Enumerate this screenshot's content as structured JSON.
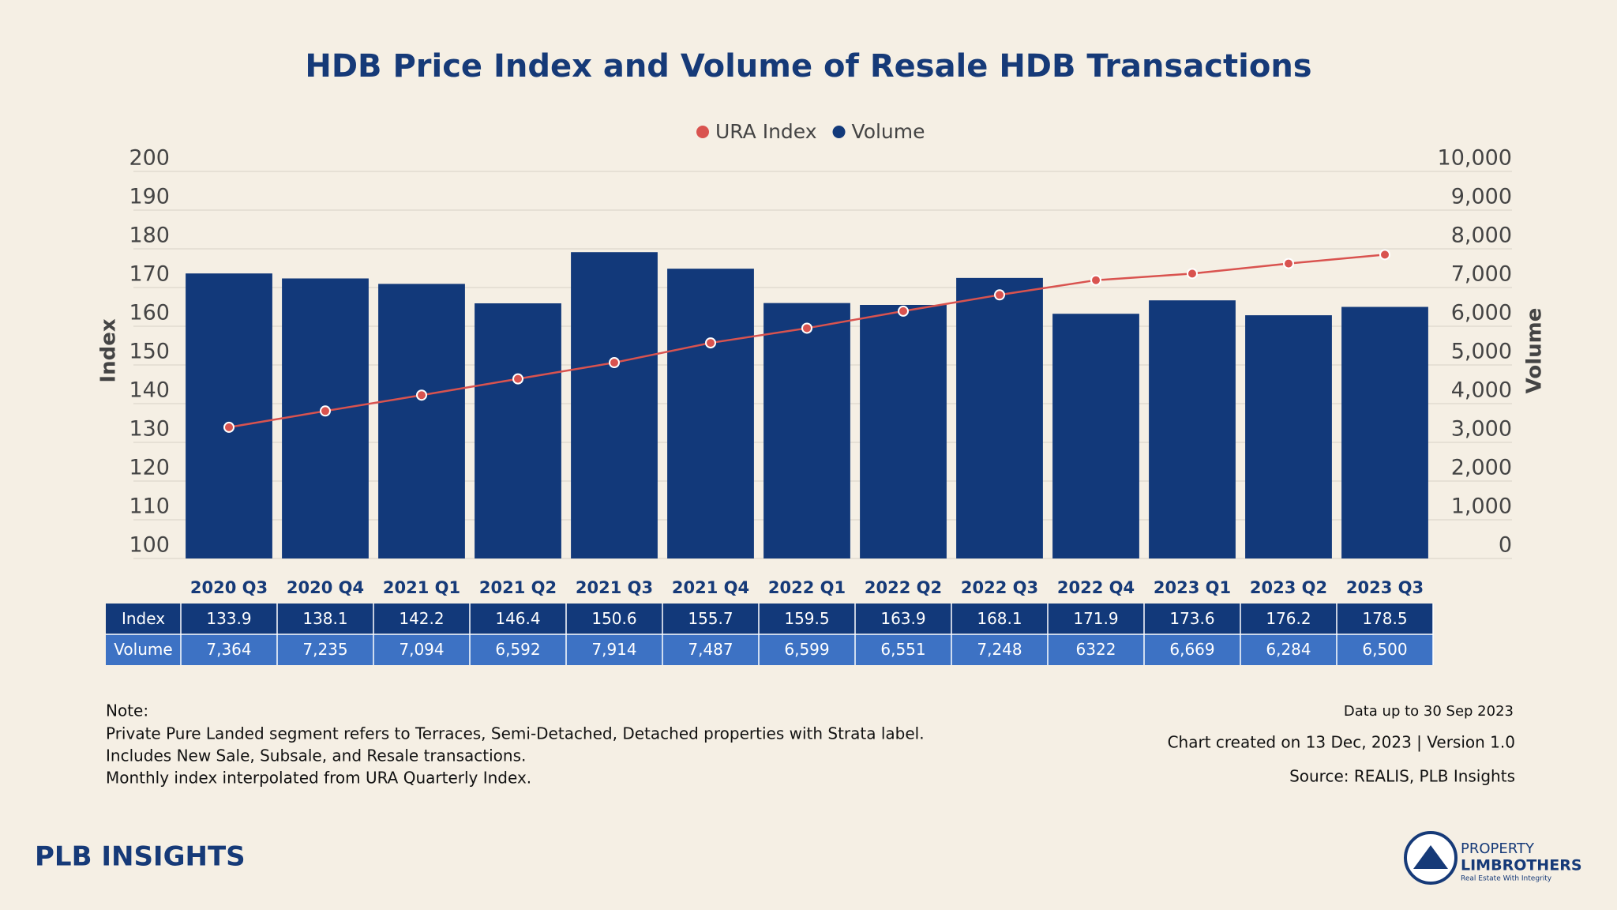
{
  "chart_data": {
    "type": "bar",
    "title": "HDB Price Index and Volume of Resale HDB Transactions",
    "categories": [
      "2020 Q3",
      "2020 Q4",
      "2021 Q1",
      "2021 Q2",
      "2021 Q3",
      "2021 Q4",
      "2022 Q1",
      "2022 Q2",
      "2022 Q3",
      "2022 Q4",
      "2023 Q1",
      "2023 Q2",
      "2023 Q3"
    ],
    "series": [
      {
        "name": "URA Index",
        "type": "line",
        "axis": "y",
        "color": "#d9534f",
        "values": [
          133.9,
          138.1,
          142.2,
          146.4,
          150.6,
          155.7,
          159.5,
          163.9,
          168.1,
          171.9,
          173.6,
          176.2,
          178.5
        ]
      },
      {
        "name": "Volume",
        "type": "bar",
        "axis": "y2",
        "color": "#12397a",
        "values": [
          7364,
          7235,
          7094,
          6592,
          7914,
          7487,
          6599,
          6551,
          7248,
          6322,
          6669,
          6284,
          6500
        ],
        "value_labels": [
          "7,364",
          "7,235",
          "7,094",
          "6,592",
          "7,914",
          "7,487",
          "6,599",
          "6,551",
          "7,248",
          "6322",
          "6,669",
          "6,284",
          "6,500"
        ]
      }
    ],
    "ylabel": "Index",
    "y2label": "Volume",
    "ylim": [
      100,
      200
    ],
    "yticks": [
      100,
      110,
      120,
      130,
      140,
      150,
      160,
      170,
      180,
      190,
      200
    ],
    "y2lim": [
      0,
      10000
    ],
    "y2ticks": [
      0,
      {
        "value": 1000,
        "label": "1,000"
      },
      {
        "value": 2000,
        "label": "2,000"
      },
      {
        "value": 3000,
        "label": "3,000"
      },
      {
        "value": 4000,
        "label": "4,000"
      },
      {
        "value": 5000,
        "label": "5,000"
      },
      {
        "value": 6000,
        "label": "6,000"
      },
      {
        "value": 7000,
        "label": "7,000"
      },
      {
        "value": 8000,
        "label": "8,000"
      },
      {
        "value": 9000,
        "label": "9,000"
      },
      {
        "value": 10000,
        "label": "10,000"
      }
    ],
    "grid": true,
    "legend": "top",
    "table_row_labels": [
      "Index",
      "Volume"
    ]
  },
  "notes": [
    "Note:",
    "Private Pure Landed segment refers to Terraces, Semi-Detached, Detached properties with Strata label.",
    "Includes New Sale, Subsale, and Resale transactions.",
    "Monthly index interpolated from URA Quarterly Index."
  ],
  "info": [
    "Data up to 30 Sep 2023",
    "Chart created on 13 Dec, 2023 | Version 1.0",
    "Source: REALIS, PLB Insights"
  ],
  "logo_left": "PLB INSIGHTS",
  "logo_right": {
    "line1": "PROPERTY",
    "line2": "LIMBROTHERS",
    "tagline": "Real Estate With Integrity"
  }
}
